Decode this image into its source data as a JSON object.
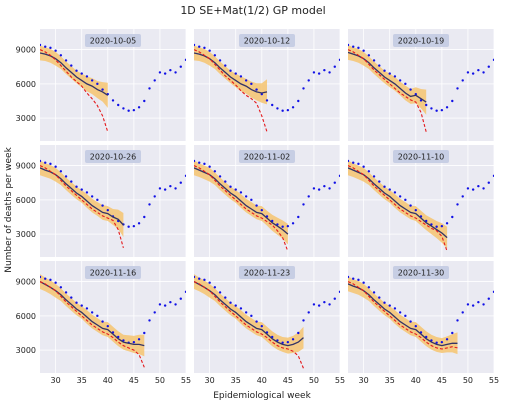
{
  "chart_data": {
    "type": "line",
    "title": "1D SE+Mat(1/2) GP model",
    "xlabel": "Epidemiological week",
    "ylabel": "Number of deaths per week",
    "xlim": [
      27,
      55
    ],
    "ylim": [
      1000,
      10800
    ],
    "xticks": [
      30,
      35,
      40,
      45,
      50,
      55
    ],
    "yticks": [
      3000,
      6000,
      9000
    ],
    "grid": true,
    "colors": {
      "panel_bg": "#eaeaf2",
      "observed": "#1010e6",
      "forecast": "#e4191c",
      "fit": "#333366",
      "band": "#f6c470",
      "label_box": "#c3cbe2"
    },
    "observed": {
      "x": [
        27,
        28,
        29,
        30,
        31,
        32,
        33,
        34,
        35,
        36,
        37,
        38,
        39,
        40,
        41,
        42,
        43,
        44,
        45,
        46,
        47,
        48,
        49,
        50,
        51,
        52,
        53,
        54,
        55
      ],
      "y": [
        9400,
        9250,
        9150,
        8900,
        8500,
        8050,
        7600,
        7150,
        6900,
        6650,
        6300,
        6000,
        5500,
        5100,
        4550,
        4150,
        3850,
        3650,
        3700,
        3950,
        4500,
        5600,
        6300,
        7000,
        6900,
        7200,
        7000,
        7500,
        8100
      ]
    },
    "panels": [
      {
        "label": "2020-10-05",
        "fit": {
          "x": [
            27,
            28,
            29,
            30,
            31,
            32,
            33,
            34,
            35,
            36,
            37,
            38,
            39,
            40
          ],
          "y": [
            8700,
            8600,
            8450,
            8200,
            7850,
            7400,
            7000,
            6600,
            6300,
            6000,
            5800,
            5500,
            5300,
            5000
          ]
        },
        "band_half_width": [
          650,
          600,
          600,
          600,
          550,
          550,
          550,
          550,
          600,
          650,
          700,
          750,
          850,
          1100
        ],
        "forecast": {
          "x": [
            27,
            28,
            29,
            30,
            31,
            32,
            33,
            34,
            35,
            36,
            37,
            38,
            39,
            40
          ],
          "y": [
            9000,
            8800,
            8500,
            8100,
            7600,
            7100,
            6600,
            6200,
            5800,
            5200,
            4700,
            4100,
            3200,
            1800
          ]
        }
      },
      {
        "label": "2020-10-12",
        "fit": {
          "x": [
            27,
            28,
            29,
            30,
            31,
            32,
            33,
            34,
            35,
            36,
            37,
            38,
            39,
            40,
            41
          ],
          "y": [
            8700,
            8600,
            8450,
            8200,
            7850,
            7400,
            7000,
            6600,
            6300,
            6000,
            5800,
            5500,
            5300,
            5200,
            5300
          ]
        },
        "band_half_width": [
          650,
          600,
          600,
          600,
          550,
          550,
          550,
          550,
          600,
          650,
          650,
          700,
          750,
          850,
          1100
        ],
        "forecast": {
          "x": [
            27,
            28,
            29,
            30,
            31,
            32,
            33,
            34,
            35,
            36,
            37,
            38,
            39,
            40,
            41
          ],
          "y": [
            9000,
            8800,
            8500,
            8200,
            7700,
            7200,
            6700,
            6300,
            5900,
            5400,
            5000,
            4700,
            4300,
            3200,
            1800
          ]
        }
      },
      {
        "label": "2020-10-19",
        "fit": {
          "x": [
            27,
            28,
            29,
            30,
            31,
            32,
            33,
            34,
            35,
            36,
            37,
            38,
            39,
            40,
            41,
            42
          ],
          "y": [
            8750,
            8600,
            8450,
            8200,
            7850,
            7400,
            7000,
            6600,
            6300,
            6000,
            5600,
            5200,
            4900,
            5000,
            4700,
            4400
          ]
        },
        "band_half_width": [
          650,
          600,
          600,
          600,
          550,
          550,
          550,
          550,
          600,
          600,
          600,
          650,
          650,
          700,
          850,
          1100
        ],
        "forecast": {
          "x": [
            27,
            28,
            29,
            30,
            31,
            32,
            33,
            34,
            35,
            36,
            37,
            38,
            39,
            40,
            41,
            42
          ],
          "y": [
            9000,
            8800,
            8500,
            8200,
            7700,
            7200,
            6800,
            6400,
            6000,
            5600,
            5200,
            4900,
            4600,
            4400,
            3500,
            1800
          ]
        }
      },
      {
        "label": "2020-10-26",
        "fit": {
          "x": [
            27,
            28,
            29,
            30,
            31,
            32,
            33,
            34,
            35,
            36,
            37,
            38,
            39,
            40,
            41,
            42,
            43
          ],
          "y": [
            8800,
            8600,
            8450,
            8200,
            7850,
            7400,
            7000,
            6600,
            6300,
            5900,
            5500,
            5200,
            4900,
            4800,
            4500,
            4300,
            3800
          ]
        },
        "band_half_width": [
          650,
          600,
          600,
          600,
          550,
          550,
          550,
          550,
          550,
          600,
          600,
          600,
          650,
          650,
          700,
          850,
          1050
        ],
        "forecast": {
          "x": [
            27,
            28,
            29,
            30,
            31,
            32,
            33,
            34,
            35,
            36,
            37,
            38,
            39,
            40,
            41,
            42,
            43
          ],
          "y": [
            9000,
            8800,
            8500,
            8200,
            7700,
            7200,
            6800,
            6400,
            6000,
            5600,
            5200,
            4900,
            4600,
            4400,
            4200,
            3400,
            1800
          ]
        }
      },
      {
        "label": "2020-11-02",
        "fit": {
          "x": [
            27,
            28,
            29,
            30,
            31,
            32,
            33,
            34,
            35,
            36,
            37,
            38,
            39,
            40,
            41,
            42,
            43,
            44,
            45
          ],
          "y": [
            8800,
            8600,
            8400,
            8200,
            7850,
            7400,
            7000,
            6600,
            6300,
            5900,
            5500,
            5200,
            4900,
            4800,
            4400,
            4000,
            3700,
            3400,
            3000
          ]
        },
        "band_half_width": [
          650,
          600,
          600,
          600,
          550,
          550,
          550,
          550,
          550,
          600,
          600,
          600,
          600,
          650,
          650,
          700,
          750,
          800,
          900
        ],
        "forecast": {
          "x": [
            27,
            28,
            29,
            30,
            31,
            32,
            33,
            34,
            35,
            36,
            37,
            38,
            39,
            40,
            41,
            42,
            43,
            44,
            45
          ],
          "y": [
            9000,
            8800,
            8500,
            8200,
            7700,
            7200,
            6800,
            6400,
            6000,
            5600,
            5200,
            4900,
            4600,
            4400,
            4100,
            3800,
            3300,
            2700,
            1500
          ]
        }
      },
      {
        "label": "2020-11-10",
        "fit": {
          "x": [
            27,
            28,
            29,
            30,
            31,
            32,
            33,
            34,
            35,
            36,
            37,
            38,
            39,
            40,
            41,
            42,
            43,
            44,
            45,
            46
          ],
          "y": [
            8800,
            8600,
            8400,
            8200,
            7850,
            7400,
            7000,
            6600,
            6300,
            5900,
            5500,
            5200,
            4900,
            4800,
            4400,
            4000,
            3700,
            3400,
            3100,
            2700
          ]
        },
        "band_half_width": [
          650,
          600,
          600,
          600,
          550,
          550,
          550,
          550,
          550,
          600,
          600,
          600,
          600,
          650,
          650,
          650,
          700,
          750,
          850,
          950
        ],
        "forecast": {
          "x": [
            27,
            28,
            29,
            30,
            31,
            32,
            33,
            34,
            35,
            36,
            37,
            38,
            39,
            40,
            41,
            42,
            43,
            44,
            45,
            46
          ],
          "y": [
            9000,
            8800,
            8500,
            8200,
            7700,
            7200,
            6800,
            6400,
            6000,
            5600,
            5200,
            4900,
            4600,
            4400,
            4100,
            3800,
            3500,
            3300,
            2800,
            1500
          ]
        }
      },
      {
        "label": "2020-11-16",
        "fit": {
          "x": [
            27,
            28,
            29,
            30,
            31,
            32,
            33,
            34,
            35,
            36,
            37,
            38,
            39,
            40,
            41,
            42,
            43,
            44,
            45,
            46,
            47
          ],
          "y": [
            9000,
            8750,
            8500,
            8200,
            7850,
            7400,
            7000,
            6600,
            6300,
            5900,
            5500,
            5200,
            4900,
            4800,
            4400,
            4000,
            3700,
            3600,
            3500,
            3500,
            3400
          ]
        },
        "band_half_width": [
          650,
          600,
          600,
          600,
          550,
          550,
          550,
          550,
          550,
          600,
          600,
          600,
          600,
          650,
          650,
          650,
          650,
          700,
          750,
          850,
          950
        ],
        "forecast": {
          "x": [
            27,
            28,
            29,
            30,
            31,
            32,
            33,
            34,
            35,
            36,
            37,
            38,
            39,
            40,
            41,
            42,
            43,
            44,
            45,
            46,
            47
          ],
          "y": [
            9000,
            8800,
            8500,
            8200,
            7700,
            7200,
            6800,
            6400,
            6000,
            5600,
            5200,
            4900,
            4600,
            4400,
            4100,
            3700,
            3400,
            3200,
            3000,
            2600,
            1500
          ]
        }
      },
      {
        "label": "2020-11-23",
        "fit": {
          "x": [
            27,
            28,
            29,
            30,
            31,
            32,
            33,
            34,
            35,
            36,
            37,
            38,
            39,
            40,
            41,
            42,
            43,
            44,
            45,
            46,
            47,
            48
          ],
          "y": [
            9000,
            8750,
            8500,
            8200,
            7850,
            7400,
            7000,
            6600,
            6300,
            5900,
            5500,
            5200,
            4900,
            4800,
            4400,
            4000,
            3700,
            3500,
            3400,
            3500,
            3700,
            4100
          ]
        },
        "band_half_width": [
          650,
          600,
          600,
          600,
          550,
          550,
          550,
          550,
          550,
          600,
          600,
          600,
          600,
          650,
          650,
          650,
          650,
          650,
          700,
          750,
          850,
          950
        ],
        "forecast": {
          "x": [
            27,
            28,
            29,
            30,
            31,
            32,
            33,
            34,
            35,
            36,
            37,
            38,
            39,
            40,
            41,
            42,
            43,
            44,
            45,
            46,
            47,
            48
          ],
          "y": [
            9000,
            8800,
            8500,
            8200,
            7700,
            7200,
            6800,
            6400,
            6000,
            5600,
            5200,
            4900,
            4600,
            4400,
            4100,
            3700,
            3400,
            3200,
            3100,
            2900,
            2500,
            1400
          ]
        }
      },
      {
        "label": "2020-11-30",
        "fit": {
          "x": [
            27,
            28,
            29,
            30,
            31,
            32,
            33,
            34,
            35,
            36,
            37,
            38,
            39,
            40,
            41,
            42,
            43,
            44,
            45,
            46,
            47,
            48
          ],
          "y": [
            8800,
            8600,
            8450,
            8200,
            7850,
            7400,
            7000,
            6600,
            6300,
            5900,
            5500,
            5200,
            4900,
            4800,
            4400,
            4000,
            3700,
            3500,
            3400,
            3500,
            3600,
            3600
          ]
        },
        "band_half_width": [
          650,
          600,
          600,
          600,
          550,
          550,
          550,
          550,
          550,
          600,
          600,
          600,
          600,
          650,
          650,
          650,
          650,
          650,
          650,
          700,
          800,
          950
        ],
        "forecast": {
          "x": [
            27,
            28,
            29,
            30,
            31,
            32,
            33,
            34,
            35,
            36,
            37,
            38,
            39,
            40,
            41,
            42,
            43,
            44,
            45,
            46,
            47,
            48
          ],
          "y": [
            9000,
            8800,
            8500,
            8200,
            7700,
            7200,
            6800,
            6400,
            6000,
            5600,
            5200,
            4900,
            4600,
            4400,
            4100,
            3700,
            3400,
            3200,
            3100,
            3200,
            3300,
            3200
          ]
        }
      }
    ]
  }
}
